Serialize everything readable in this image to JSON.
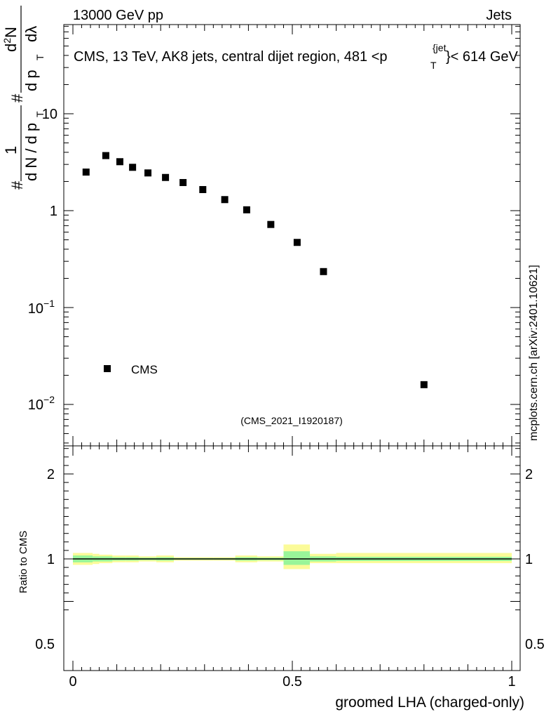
{
  "header": {
    "energy_label": "13000 GeV pp",
    "category_label": "Jets"
  },
  "side_credit": "mcplots.cern.ch [arXiv:2401.10621]",
  "chart_data": [
    {
      "type": "scatter",
      "panel": "main",
      "title_parts": {
        "pre": "CMS, 13 TeV, AK8 jets, central dijet region, 481 <",
        "p": "p",
        "sub": "T",
        "sup": "{jet",
        "post": "}< 614 GeV"
      },
      "ylabel": {
        "hash": "#",
        "one": "1",
        "dN": "d N / d p",
        "dN_sub": "T",
        "hash2": "#",
        "d2N": "d",
        "d2N_sup": "2",
        "d2N_rest": "N",
        "dpdl": "d p",
        "dpdl_sub": "T",
        "dlambda": "dλ"
      },
      "yscale": "log",
      "ylim": [
        0.004,
        70
      ],
      "xlim": [
        -0.02,
        1.02
      ],
      "ytick_labels": {
        "ten": "10",
        "one": "1",
        "tenth_base": "10",
        "tenth_exp": "−1",
        "hundredth_base": "10",
        "hundredth_exp": "−2"
      },
      "series": [
        {
          "name": "CMS",
          "marker": "square",
          "color": "#000000",
          "x": [
            0.03,
            0.075,
            0.107,
            0.136,
            0.171,
            0.211,
            0.251,
            0.296,
            0.346,
            0.396,
            0.451,
            0.511,
            0.571,
            0.8
          ],
          "y": [
            2.5,
            3.7,
            3.2,
            2.8,
            2.45,
            2.2,
            1.95,
            1.65,
            1.3,
            1.02,
            0.72,
            0.47,
            0.235,
            0.016
          ]
        }
      ],
      "legend": {
        "entry": "CMS",
        "placement": "bottom-left"
      },
      "watermark": "(CMS_2021_I1920187)"
    },
    {
      "type": "band",
      "panel": "ratio",
      "ylabel": "Ratio to CMS",
      "xlabel": "groomed LHA (charged-only)",
      "ylim": [
        0.4,
        2.35
      ],
      "xlim": [
        -0.02,
        1.02
      ],
      "reference_line": 1.0,
      "ytick_labels_left": [
        "2",
        "1",
        "0.5"
      ],
      "ytick_labels_right": [
        "2",
        "1",
        "0.5"
      ],
      "xtick_labels": [
        "0",
        "0.5",
        "1"
      ],
      "bins": [
        {
          "x0": 0.0,
          "x1": 0.045,
          "stat": [
            0.96,
            1.04
          ],
          "total": [
            0.93,
            1.07
          ]
        },
        {
          "x0": 0.045,
          "x1": 0.06,
          "stat": [
            0.97,
            1.03
          ],
          "total": [
            0.94,
            1.06
          ]
        },
        {
          "x0": 0.06,
          "x1": 0.09,
          "stat": [
            0.97,
            1.03
          ],
          "total": [
            0.95,
            1.05
          ]
        },
        {
          "x0": 0.09,
          "x1": 0.12,
          "stat": [
            0.98,
            1.02
          ],
          "total": [
            0.96,
            1.04
          ]
        },
        {
          "x0": 0.12,
          "x1": 0.15,
          "stat": [
            0.98,
            1.02
          ],
          "total": [
            0.96,
            1.04
          ]
        },
        {
          "x0": 0.15,
          "x1": 0.19,
          "stat": [
            0.985,
            1.015
          ],
          "total": [
            0.97,
            1.03
          ]
        },
        {
          "x0": 0.19,
          "x1": 0.23,
          "stat": [
            0.98,
            1.02
          ],
          "total": [
            0.96,
            1.04
          ]
        },
        {
          "x0": 0.23,
          "x1": 0.27,
          "stat": [
            0.99,
            1.01
          ],
          "total": [
            0.98,
            1.02
          ]
        },
        {
          "x0": 0.27,
          "x1": 0.32,
          "stat": [
            0.99,
            1.01
          ],
          "total": [
            0.98,
            1.02
          ]
        },
        {
          "x0": 0.32,
          "x1": 0.37,
          "stat": [
            0.99,
            1.01
          ],
          "total": [
            0.98,
            1.02
          ]
        },
        {
          "x0": 0.37,
          "x1": 0.42,
          "stat": [
            0.98,
            1.02
          ],
          "total": [
            0.96,
            1.04
          ]
        },
        {
          "x0": 0.42,
          "x1": 0.48,
          "stat": [
            0.985,
            1.015
          ],
          "total": [
            0.97,
            1.03
          ]
        },
        {
          "x0": 0.48,
          "x1": 0.54,
          "stat": [
            0.93,
            1.09
          ],
          "total": [
            0.88,
            1.17
          ]
        },
        {
          "x0": 0.54,
          "x1": 0.6,
          "stat": [
            0.97,
            1.03
          ],
          "total": [
            0.95,
            1.06
          ]
        },
        {
          "x0": 0.6,
          "x1": 1.0,
          "stat": [
            0.975,
            1.025
          ],
          "total": [
            0.95,
            1.07
          ]
        }
      ]
    }
  ],
  "colors": {
    "stat_band": "#99f599",
    "total_band": "#fbfb99",
    "axis": "#000000",
    "watermark": "#999999",
    "credit": "#666666"
  }
}
